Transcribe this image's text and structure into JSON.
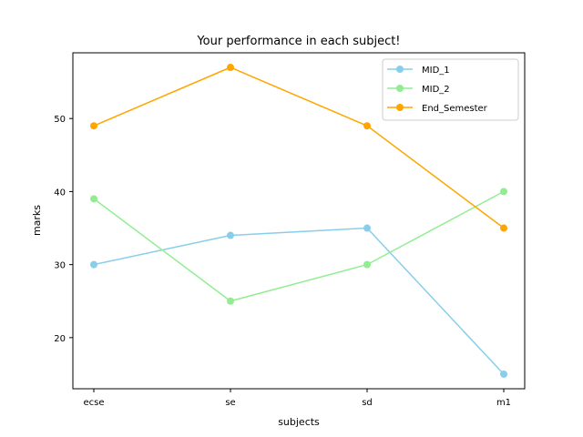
{
  "chart_data": {
    "type": "line",
    "title": "Your performance in each subject!",
    "xlabel": "subjects",
    "ylabel": "marks",
    "categories": [
      "ecse",
      "se",
      "sd",
      "m1"
    ],
    "ylim": [
      13.0,
      59.0
    ],
    "yticks": [
      20,
      30,
      40,
      50
    ],
    "grid": false,
    "legend_position": "top-right",
    "series": [
      {
        "name": "MID_1",
        "color": "#87ceeb",
        "values": [
          30,
          34,
          35,
          15
        ]
      },
      {
        "name": "MID_2",
        "color": "#90ee90",
        "values": [
          39,
          25,
          30,
          40
        ]
      },
      {
        "name": "End_Semester",
        "color": "#ffa500",
        "values": [
          49,
          57,
          49,
          35
        ]
      }
    ]
  }
}
